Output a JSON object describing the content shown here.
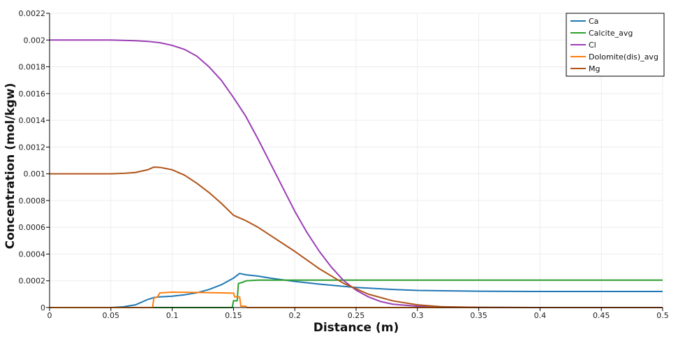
{
  "chart_data": {
    "type": "line",
    "xlabel": "Distance (m)",
    "ylabel": "Concentration (mol/kgw)",
    "xlim": [
      0,
      0.5
    ],
    "ylim": [
      0,
      0.0022
    ],
    "x_ticks": [
      0,
      0.05,
      0.1,
      0.15,
      0.2,
      0.25,
      0.3,
      0.35,
      0.4,
      0.45,
      0.5
    ],
    "x_tick_labels": [
      "0",
      "0.05",
      "0.1",
      "0.15",
      "0.2",
      "0.25",
      "0.3",
      "0.35",
      "0.4",
      "0.45",
      "0.5"
    ],
    "y_ticks": [
      0,
      0.0002,
      0.0004,
      0.0006,
      0.0008,
      0.001,
      0.0012,
      0.0014,
      0.0016,
      0.0018,
      0.002,
      0.0022
    ],
    "y_tick_labels": [
      "0",
      "0.0002",
      "0.0004",
      "0.0006",
      "0.0008",
      "0.001",
      "0.0012",
      "0.0014",
      "0.0016",
      "0.0018",
      "0.002",
      "0.0022"
    ],
    "grid": true,
    "legend_position": "top-right",
    "series": [
      {
        "name": "Ca",
        "color": "#1f77b4",
        "points": [
          [
            0,
            0
          ],
          [
            0.05,
            0
          ],
          [
            0.06,
            5e-06
          ],
          [
            0.07,
            2e-05
          ],
          [
            0.08,
            6e-05
          ],
          [
            0.085,
            7.5e-05
          ],
          [
            0.09,
            8e-05
          ],
          [
            0.1,
            8.5e-05
          ],
          [
            0.11,
            9.5e-05
          ],
          [
            0.12,
            0.00011
          ],
          [
            0.13,
            0.000135
          ],
          [
            0.14,
            0.00017
          ],
          [
            0.15,
            0.00022
          ],
          [
            0.155,
            0.000255
          ],
          [
            0.16,
            0.000245
          ],
          [
            0.17,
            0.000235
          ],
          [
            0.18,
            0.00022
          ],
          [
            0.2,
            0.000195
          ],
          [
            0.22,
            0.000175
          ],
          [
            0.25,
            0.00015
          ],
          [
            0.28,
            0.000135
          ],
          [
            0.3,
            0.000128
          ],
          [
            0.35,
            0.000122
          ],
          [
            0.4,
            0.00012
          ],
          [
            0.5,
            0.00012
          ]
        ]
      },
      {
        "name": "Calcite_avg",
        "color": "#2ca02c",
        "points": [
          [
            0,
            0
          ],
          [
            0.149,
            0
          ],
          [
            0.15,
            5e-05
          ],
          [
            0.153,
            5e-05
          ],
          [
            0.154,
            0.00018
          ],
          [
            0.158,
            0.00019
          ],
          [
            0.16,
            0.0002
          ],
          [
            0.17,
            0.000205
          ],
          [
            0.2,
            0.000205
          ],
          [
            0.3,
            0.000205
          ],
          [
            0.4,
            0.000205
          ],
          [
            0.5,
            0.000205
          ]
        ]
      },
      {
        "name": "Cl",
        "color": "#9b3fb5",
        "points": [
          [
            0,
            0.002
          ],
          [
            0.05,
            0.002
          ],
          [
            0.07,
            0.001995
          ],
          [
            0.08,
            0.00199
          ],
          [
            0.09,
            0.00198
          ],
          [
            0.1,
            0.00196
          ],
          [
            0.11,
            0.00193
          ],
          [
            0.12,
            0.00188
          ],
          [
            0.13,
            0.0018
          ],
          [
            0.14,
            0.0017
          ],
          [
            0.15,
            0.00157
          ],
          [
            0.16,
            0.00143
          ],
          [
            0.17,
            0.00126
          ],
          [
            0.18,
            0.00108
          ],
          [
            0.19,
            0.0009
          ],
          [
            0.2,
            0.00072
          ],
          [
            0.21,
            0.00056
          ],
          [
            0.22,
            0.00042
          ],
          [
            0.23,
            0.0003
          ],
          [
            0.24,
            0.0002
          ],
          [
            0.25,
            0.00013
          ],
          [
            0.26,
            8e-05
          ],
          [
            0.27,
            4.5e-05
          ],
          [
            0.28,
            2.5e-05
          ],
          [
            0.3,
            1e-05
          ],
          [
            0.32,
            4e-06
          ],
          [
            0.35,
            1e-06
          ],
          [
            0.4,
            0
          ],
          [
            0.5,
            0
          ]
        ]
      },
      {
        "name": "Dolomite(dis)_avg",
        "color": "#ff7f0e",
        "points": [
          [
            0,
            0
          ],
          [
            0.084,
            0
          ],
          [
            0.085,
            7e-05
          ],
          [
            0.088,
            8e-05
          ],
          [
            0.09,
            0.00011
          ],
          [
            0.1,
            0.000115
          ],
          [
            0.12,
            0.000113
          ],
          [
            0.14,
            0.00011
          ],
          [
            0.15,
            0.000108
          ],
          [
            0.151,
            8e-05
          ],
          [
            0.155,
            8e-05
          ],
          [
            0.156,
            1e-05
          ],
          [
            0.16,
            1e-05
          ],
          [
            0.161,
            0
          ],
          [
            0.5,
            0
          ]
        ]
      },
      {
        "name": "Mg",
        "color": "#b05418",
        "points": [
          [
            0,
            0.001
          ],
          [
            0.05,
            0.001
          ],
          [
            0.06,
            0.001003
          ],
          [
            0.07,
            0.00101
          ],
          [
            0.08,
            0.00103
          ],
          [
            0.085,
            0.00105
          ],
          [
            0.09,
            0.001048
          ],
          [
            0.1,
            0.00103
          ],
          [
            0.11,
            0.00099
          ],
          [
            0.12,
            0.00093
          ],
          [
            0.13,
            0.00086
          ],
          [
            0.14,
            0.00078
          ],
          [
            0.15,
            0.00069
          ],
          [
            0.155,
            0.00067
          ],
          [
            0.16,
            0.00065
          ],
          [
            0.17,
            0.0006
          ],
          [
            0.18,
            0.00054
          ],
          [
            0.2,
            0.00042
          ],
          [
            0.22,
            0.00029
          ],
          [
            0.24,
            0.00018
          ],
          [
            0.26,
            0.0001
          ],
          [
            0.28,
            5e-05
          ],
          [
            0.3,
            2e-05
          ],
          [
            0.32,
            6e-06
          ],
          [
            0.35,
            1e-06
          ],
          [
            0.4,
            0
          ],
          [
            0.5,
            0
          ]
        ]
      }
    ]
  }
}
